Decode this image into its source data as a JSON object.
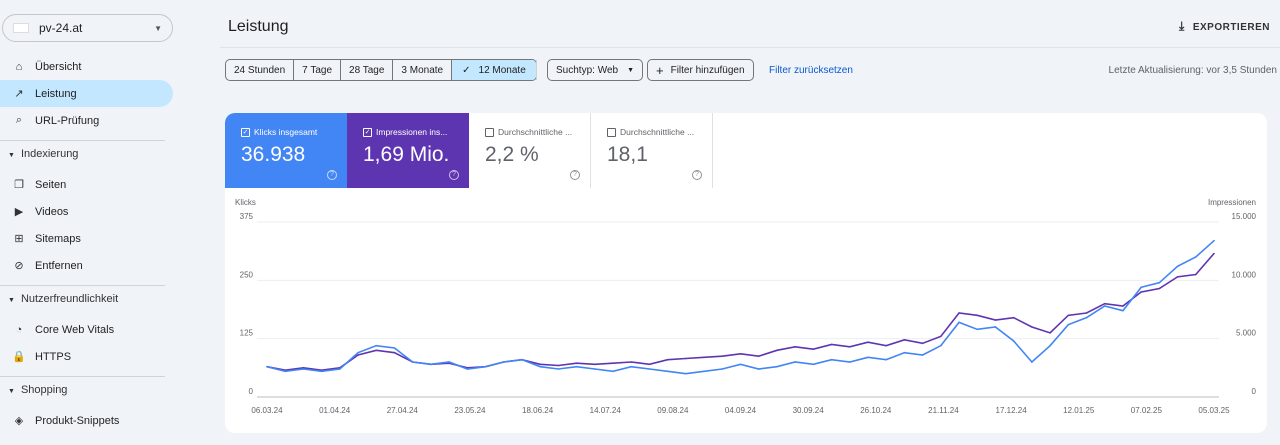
{
  "sidebar": {
    "property": "pv-24.at",
    "items": [
      {
        "label": "Übersicht",
        "icon": "home-icon"
      },
      {
        "label": "Leistung",
        "icon": "trending-up-icon",
        "active": true
      },
      {
        "label": "URL-Prüfung",
        "icon": "search-icon"
      }
    ],
    "sections": [
      {
        "label": "Indexierung",
        "items": [
          {
            "label": "Seiten",
            "icon": "pages-icon"
          },
          {
            "label": "Videos",
            "icon": "video-icon"
          },
          {
            "label": "Sitemaps",
            "icon": "sitemap-icon"
          },
          {
            "label": "Entfernen",
            "icon": "eye-off-icon"
          }
        ]
      },
      {
        "label": "Nutzerfreundlichkeit",
        "items": [
          {
            "label": "Core Web Vitals",
            "icon": "gauge-icon"
          },
          {
            "label": "HTTPS",
            "icon": "lock-icon"
          }
        ]
      },
      {
        "label": "Shopping",
        "items": [
          {
            "label": "Produkt-Snippets",
            "icon": "layers-icon"
          }
        ]
      }
    ]
  },
  "header": {
    "title": "Leistung",
    "export": "EXPORTIEREN"
  },
  "filters": {
    "ranges": [
      "24 Stunden",
      "7 Tage",
      "28 Tage",
      "3 Monate",
      "12 Monate"
    ],
    "selected": "12 Monate",
    "search_type": "Suchtyp: Web",
    "add_filter": "Filter hinzufügen",
    "reset": "Filter zurücksetzen",
    "last_update": "Letzte Aktualisierung: vor 3,5 Stunden"
  },
  "metrics": [
    {
      "label": "Klicks insgesamt",
      "value": "36.938",
      "checked": true,
      "color": "#4285f4"
    },
    {
      "label": "Impressionen ins...",
      "value": "1,69 Mio.",
      "checked": true,
      "color": "#5e35b1"
    },
    {
      "label": "Durchschnittliche ...",
      "value": "2,2 %",
      "checked": false
    },
    {
      "label": "Durchschnittliche ...",
      "value": "18,1",
      "checked": false
    }
  ],
  "chart_data": {
    "type": "line",
    "ylabel_left": "Klicks",
    "ylabel_right": "Impressionen",
    "ylim_left": [
      0,
      375
    ],
    "ylim_right": [
      0,
      15000
    ],
    "yticks_left": [
      "0",
      "125",
      "250",
      "375"
    ],
    "yticks_right": [
      "0",
      "5.000",
      "10.000",
      "15.000"
    ],
    "xticks": [
      "06.03.24",
      "01.04.24",
      "27.04.24",
      "23.05.24",
      "18.06.24",
      "14.07.24",
      "09.08.24",
      "04.09.24",
      "30.09.24",
      "26.10.24",
      "21.11.24",
      "17.12.24",
      "12.01.25",
      "07.02.25",
      "05.03.25"
    ],
    "x": [
      "06.03.24",
      "13.03.24",
      "20.03.24",
      "27.03.24",
      "03.04.24",
      "10.04.24",
      "17.04.24",
      "24.04.24",
      "01.05.24",
      "08.05.24",
      "15.05.24",
      "22.05.24",
      "29.05.24",
      "05.06.24",
      "12.06.24",
      "19.06.24",
      "26.06.24",
      "03.07.24",
      "10.07.24",
      "17.07.24",
      "24.07.24",
      "31.07.24",
      "07.08.24",
      "14.08.24",
      "21.08.24",
      "28.08.24",
      "04.09.24",
      "11.09.24",
      "18.09.24",
      "25.09.24",
      "02.10.24",
      "09.10.24",
      "16.10.24",
      "23.10.24",
      "30.10.24",
      "06.11.24",
      "13.11.24",
      "20.11.24",
      "27.11.24",
      "04.12.24",
      "11.12.24",
      "18.12.24",
      "25.12.24",
      "01.01.25",
      "08.01.25",
      "15.01.25",
      "22.01.25",
      "29.01.25",
      "05.02.25",
      "12.02.25",
      "19.02.25",
      "26.02.25",
      "05.03.25"
    ],
    "grid": true,
    "series": [
      {
        "name": "Klicks",
        "axis": "left",
        "color": "#4285f4",
        "values": [
          65,
          55,
          60,
          55,
          60,
          95,
          110,
          105,
          75,
          70,
          75,
          60,
          65,
          75,
          80,
          65,
          60,
          65,
          60,
          55,
          65,
          60,
          55,
          50,
          55,
          60,
          70,
          60,
          65,
          75,
          70,
          80,
          75,
          85,
          80,
          95,
          90,
          110,
          160,
          145,
          150,
          120,
          75,
          110,
          155,
          170,
          195,
          185,
          235,
          245,
          280,
          300,
          335
        ]
      },
      {
        "name": "Impressionen",
        "axis": "right",
        "color": "#5e35b1",
        "values": [
          2600,
          2300,
          2500,
          2300,
          2500,
          3600,
          4000,
          3800,
          3000,
          2800,
          2900,
          2500,
          2600,
          3000,
          3200,
          2800,
          2700,
          2900,
          2800,
          2900,
          3000,
          2800,
          3200,
          3300,
          3400,
          3500,
          3700,
          3500,
          4000,
          4300,
          4100,
          4500,
          4300,
          4700,
          4400,
          4900,
          4600,
          5200,
          7200,
          7000,
          6600,
          6800,
          6000,
          5500,
          7000,
          7200,
          8000,
          7800,
          9000,
          9300,
          10300,
          10500,
          12300
        ]
      }
    ]
  }
}
